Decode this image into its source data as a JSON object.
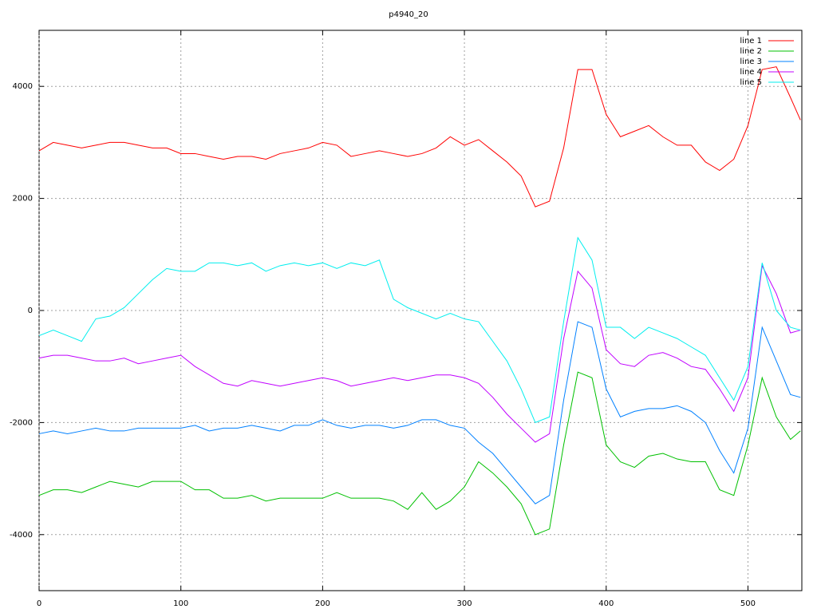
{
  "chart_data": {
    "type": "line",
    "title": "p4940_20",
    "x": [
      0,
      10,
      20,
      30,
      40,
      50,
      60,
      70,
      80,
      90,
      100,
      110,
      120,
      130,
      140,
      150,
      160,
      170,
      180,
      190,
      200,
      210,
      220,
      230,
      240,
      250,
      260,
      270,
      280,
      290,
      300,
      310,
      320,
      330,
      340,
      350,
      360,
      370,
      380,
      390,
      400,
      410,
      420,
      430,
      440,
      450,
      460,
      470,
      480,
      490,
      500,
      510,
      520,
      530,
      537
    ],
    "series": [
      {
        "name": "line 1",
        "color": "#ff0000",
        "values": [
          2850,
          3000,
          2950,
          2900,
          2950,
          3000,
          3000,
          2950,
          2900,
          2900,
          2800,
          2800,
          2750,
          2700,
          2750,
          2750,
          2700,
          2800,
          2850,
          2900,
          3000,
          2950,
          2750,
          2800,
          2850,
          2800,
          2750,
          2800,
          2900,
          3100,
          2950,
          3050,
          2850,
          2650,
          2400,
          1850,
          1950,
          2900,
          4300,
          4300,
          3500,
          3100,
          3200,
          3300,
          3100,
          2950,
          2950,
          2650,
          2500,
          2700,
          3300,
          4300,
          4350,
          3800,
          3400
        ]
      },
      {
        "name": "line 2",
        "color": "#00c000",
        "values": [
          -3300,
          -3200,
          -3200,
          -3250,
          -3150,
          -3050,
          -3100,
          -3150,
          -3050,
          -3050,
          -3050,
          -3200,
          -3200,
          -3350,
          -3350,
          -3300,
          -3400,
          -3350,
          -3350,
          -3350,
          -3350,
          -3250,
          -3350,
          -3350,
          -3350,
          -3400,
          -3550,
          -3250,
          -3550,
          -3400,
          -3150,
          -2700,
          -2900,
          -3150,
          -3450,
          -4000,
          -3900,
          -2400,
          -1100,
          -1200,
          -2400,
          -2700,
          -2800,
          -2600,
          -2550,
          -2650,
          -2700,
          -2700,
          -3200,
          -3300,
          -2400,
          -1200,
          -1900,
          -2300,
          -2150
        ]
      },
      {
        "name": "line 3",
        "color": "#0080ff",
        "values": [
          -2200,
          -2150,
          -2200,
          -2150,
          -2100,
          -2150,
          -2150,
          -2100,
          -2100,
          -2100,
          -2100,
          -2050,
          -2150,
          -2100,
          -2100,
          -2050,
          -2100,
          -2150,
          -2050,
          -2050,
          -1950,
          -2050,
          -2100,
          -2050,
          -2050,
          -2100,
          -2050,
          -1950,
          -1950,
          -2050,
          -2100,
          -2350,
          -2550,
          -2850,
          -3150,
          -3450,
          -3300,
          -1600,
          -200,
          -300,
          -1400,
          -1900,
          -1800,
          -1750,
          -1750,
          -1700,
          -1800,
          -2000,
          -2500,
          -2900,
          -2100,
          -300,
          -900,
          -1500,
          -1550
        ]
      },
      {
        "name": "line 4",
        "color": "#c000ff",
        "values": [
          -850,
          -800,
          -800,
          -850,
          -900,
          -900,
          -850,
          -950,
          -900,
          -850,
          -800,
          -1000,
          -1150,
          -1300,
          -1350,
          -1250,
          -1300,
          -1350,
          -1300,
          -1250,
          -1200,
          -1250,
          -1350,
          -1300,
          -1250,
          -1200,
          -1250,
          -1200,
          -1150,
          -1150,
          -1200,
          -1300,
          -1550,
          -1850,
          -2100,
          -2350,
          -2200,
          -500,
          700,
          400,
          -700,
          -950,
          -1000,
          -800,
          -750,
          -850,
          -1000,
          -1050,
          -1400,
          -1800,
          -1200,
          800,
          300,
          -400,
          -350
        ]
      },
      {
        "name": "line 5",
        "color": "#00eeee",
        "values": [
          -450,
          -350,
          -450,
          -550,
          -150,
          -100,
          50,
          300,
          550,
          750,
          700,
          700,
          850,
          850,
          800,
          850,
          700,
          800,
          850,
          800,
          850,
          750,
          850,
          800,
          900,
          200,
          50,
          -50,
          -150,
          -50,
          -150,
          -200,
          -550,
          -900,
          -1400,
          -2000,
          -1900,
          -200,
          1300,
          900,
          -300,
          -300,
          -500,
          -300,
          -400,
          -500,
          -650,
          -800,
          -1200,
          -1600,
          -1000,
          850,
          0,
          -300,
          -350
        ]
      }
    ],
    "xlim": [
      0,
      538
    ],
    "ylim": [
      -5000,
      5000
    ],
    "xticks": [
      0,
      100,
      200,
      300,
      400,
      500
    ],
    "yticks": [
      -4000,
      -2000,
      0,
      2000,
      4000
    ],
    "grid": true,
    "legend": "top right"
  }
}
